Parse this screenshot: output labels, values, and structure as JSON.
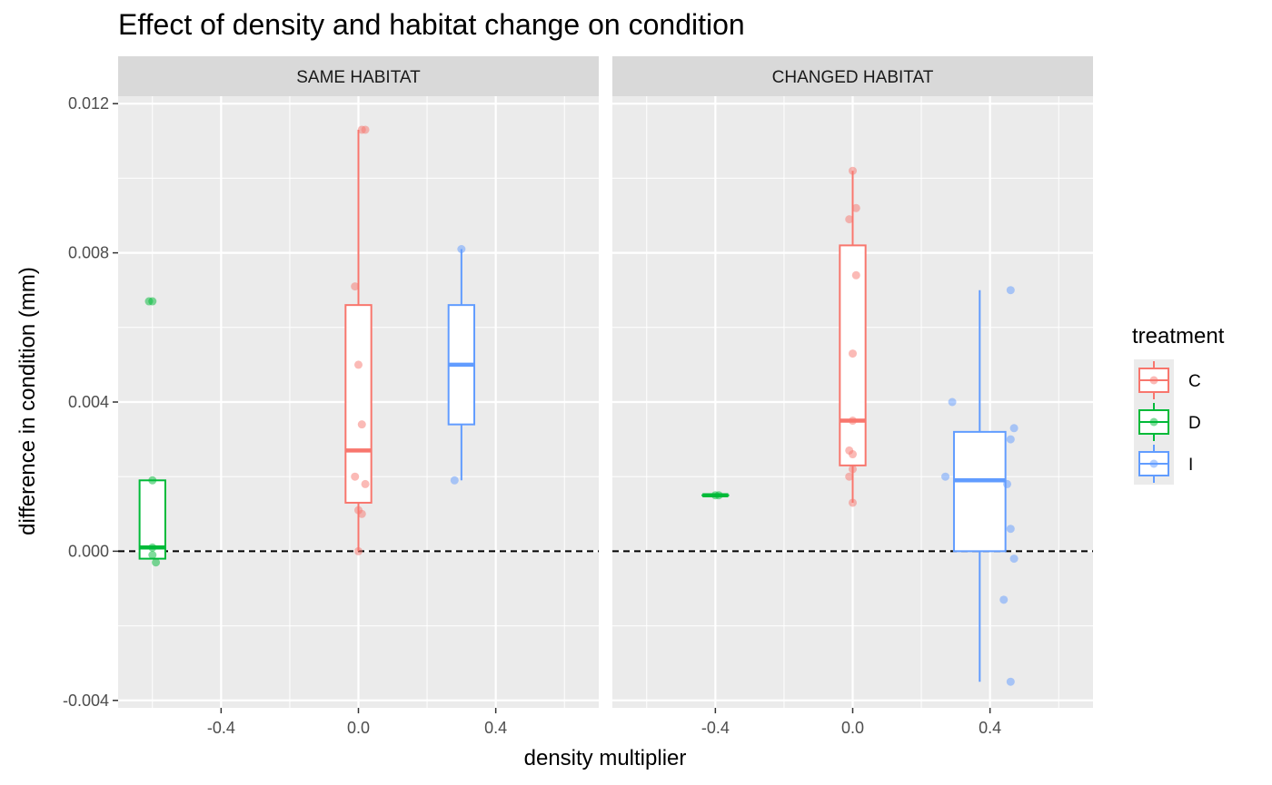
{
  "chart_data": {
    "type": "box",
    "title": "Effect of density and habitat change on condition",
    "xlabel": "density multiplier",
    "ylabel": "difference in condition (mm)",
    "xlim": [
      -0.7,
      0.7
    ],
    "ylim": [
      -0.0042,
      0.0122
    ],
    "x_ticks": [
      -0.4,
      0.0,
      0.4
    ],
    "x_tick_labels": [
      "-0.4",
      "0.0",
      "0.4"
    ],
    "y_ticks": [
      -0.004,
      0.0,
      0.004,
      0.008,
      0.012
    ],
    "y_tick_labels": [
      "-0.004",
      "0.000",
      "0.004",
      "0.008",
      "0.012"
    ],
    "reference_line": {
      "y": 0.0,
      "style": "dashed"
    },
    "grid": true,
    "legend": {
      "title": "treatment",
      "position": "right",
      "entries": [
        {
          "label": "C",
          "color": "#F8766D"
        },
        {
          "label": "D",
          "color": "#00BA38"
        },
        {
          "label": "I",
          "color": "#619CFF"
        }
      ]
    },
    "panels": [
      {
        "label": "SAME HABITAT",
        "boxes": [
          {
            "treatment": "D",
            "x": -0.6,
            "width": 0.075,
            "lower": -0.0002,
            "q1": -0.0002,
            "median": 0.0001,
            "q3": 0.0019,
            "upper": 0.0019
          },
          {
            "treatment": "C",
            "x": 0.0,
            "width": 0.075,
            "lower": 0.0,
            "q1": 0.0013,
            "median": 0.0027,
            "q3": 0.0066,
            "upper": 0.0113
          },
          {
            "treatment": "I",
            "x": 0.3,
            "width": 0.075,
            "lower": 0.0019,
            "q1": 0.0034,
            "median": 0.005,
            "q3": 0.0066,
            "upper": 0.0081
          }
        ],
        "points": [
          {
            "treatment": "D",
            "x": -0.61,
            "y": 0.0067
          },
          {
            "treatment": "D",
            "x": -0.6,
            "y": 0.0067
          },
          {
            "treatment": "D",
            "x": -0.6,
            "y": 0.0019
          },
          {
            "treatment": "D",
            "x": -0.6,
            "y": 0.0001
          },
          {
            "treatment": "D",
            "x": -0.6,
            "y": -0.0001
          },
          {
            "treatment": "D",
            "x": -0.59,
            "y": -0.0003
          },
          {
            "treatment": "C",
            "x": 0.01,
            "y": 0.0113
          },
          {
            "treatment": "C",
            "x": 0.02,
            "y": 0.0113
          },
          {
            "treatment": "C",
            "x": -0.01,
            "y": 0.0071
          },
          {
            "treatment": "C",
            "x": 0.0,
            "y": 0.005
          },
          {
            "treatment": "C",
            "x": 0.01,
            "y": 0.0034
          },
          {
            "treatment": "C",
            "x": -0.01,
            "y": 0.002
          },
          {
            "treatment": "C",
            "x": 0.02,
            "y": 0.0018
          },
          {
            "treatment": "C",
            "x": 0.0,
            "y": 0.0011
          },
          {
            "treatment": "C",
            "x": 0.01,
            "y": 0.001
          },
          {
            "treatment": "C",
            "x": 0.0,
            "y": 0.0
          },
          {
            "treatment": "I",
            "x": 0.3,
            "y": 0.0081
          },
          {
            "treatment": "I",
            "x": 0.28,
            "y": 0.0019
          }
        ]
      },
      {
        "label": "CHANGED HABITAT",
        "boxes": [
          {
            "treatment": "D",
            "x": -0.4,
            "width": 0.075,
            "lower": 0.0015,
            "q1": 0.0015,
            "median": 0.0015,
            "q3": 0.0015,
            "upper": 0.0015
          },
          {
            "treatment": "C",
            "x": 0.0,
            "width": 0.075,
            "lower": 0.0013,
            "q1": 0.0023,
            "median": 0.0035,
            "q3": 0.0082,
            "upper": 0.0102
          },
          {
            "treatment": "I",
            "x": 0.37,
            "width": 0.15,
            "lower": -0.0035,
            "q1": 0.0,
            "median": 0.0019,
            "q3": 0.0032,
            "upper": 0.007
          }
        ],
        "points": [
          {
            "treatment": "D",
            "x": -0.4,
            "y": 0.0015
          },
          {
            "treatment": "D",
            "x": -0.39,
            "y": 0.0015
          },
          {
            "treatment": "C",
            "x": 0.0,
            "y": 0.0102
          },
          {
            "treatment": "C",
            "x": 0.01,
            "y": 0.0092
          },
          {
            "treatment": "C",
            "x": -0.01,
            "y": 0.0089
          },
          {
            "treatment": "C",
            "x": 0.01,
            "y": 0.0074
          },
          {
            "treatment": "C",
            "x": 0.0,
            "y": 0.0053
          },
          {
            "treatment": "C",
            "x": 0.0,
            "y": 0.0035
          },
          {
            "treatment": "C",
            "x": -0.01,
            "y": 0.0027
          },
          {
            "treatment": "C",
            "x": 0.0,
            "y": 0.0026
          },
          {
            "treatment": "C",
            "x": 0.0,
            "y": 0.0022
          },
          {
            "treatment": "C",
            "x": -0.01,
            "y": 0.002
          },
          {
            "treatment": "C",
            "x": 0.0,
            "y": 0.0013
          },
          {
            "treatment": "I",
            "x": 0.29,
            "y": 0.004
          },
          {
            "treatment": "I",
            "x": 0.27,
            "y": 0.002
          },
          {
            "treatment": "I",
            "x": 0.46,
            "y": 0.007
          },
          {
            "treatment": "I",
            "x": 0.47,
            "y": 0.0033
          },
          {
            "treatment": "I",
            "x": 0.46,
            "y": 0.003
          },
          {
            "treatment": "I",
            "x": 0.45,
            "y": 0.0018
          },
          {
            "treatment": "I",
            "x": 0.46,
            "y": 0.0006
          },
          {
            "treatment": "I",
            "x": 0.47,
            "y": -0.0002
          },
          {
            "treatment": "I",
            "x": 0.44,
            "y": -0.0013
          },
          {
            "treatment": "I",
            "x": 0.46,
            "y": -0.0035
          }
        ]
      }
    ]
  }
}
